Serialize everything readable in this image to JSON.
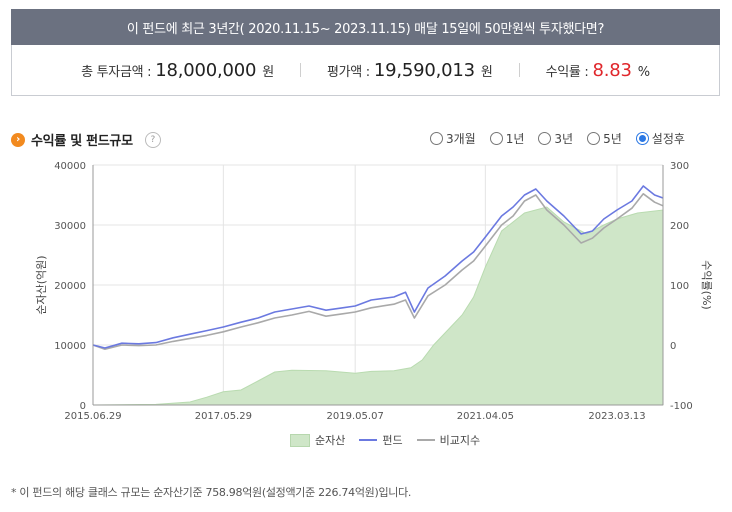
{
  "header": {
    "title": "이 펀드에 최근 3년간( 2020.11.15~ 2023.11.15) 매달 15일에 50만원씩 투자했다면?"
  },
  "summary": {
    "total_label": "총 투자금액 :",
    "total_value": "18,000,000",
    "total_unit": "원",
    "eval_label": "평가액 :",
    "eval_value": "19,590,013",
    "eval_unit": "원",
    "return_label": "수익률 :",
    "return_value": "8.83",
    "return_unit": "%"
  },
  "section": {
    "title": "수익률 및 펀드규모",
    "bullet_icon": "chevron-right-icon",
    "help_icon": "question-icon",
    "help_glyph": "?"
  },
  "periods": [
    {
      "label": "3개월",
      "selected": false
    },
    {
      "label": "1년",
      "selected": false
    },
    {
      "label": "3년",
      "selected": false
    },
    {
      "label": "5년",
      "selected": false
    },
    {
      "label": "설정후",
      "selected": true
    }
  ],
  "chart_data": {
    "type": "area",
    "x_start": "2015.06.29",
    "x_end": "2023.11.15",
    "x_ticks": [
      "2015.06.29",
      "2017.05.29",
      "2019.05.07",
      "2021.04.05",
      "2023.03.13"
    ],
    "y_left": {
      "label": "순자산(억원)",
      "ticks": [
        0,
        10000,
        20000,
        30000,
        40000
      ],
      "range": [
        0,
        40000
      ]
    },
    "y_right": {
      "label": "수익률(%)",
      "ticks": [
        -100,
        0,
        100,
        200,
        300
      ],
      "range": [
        -100,
        300
      ]
    },
    "grid": true,
    "legend_position": "bottom",
    "colors": {
      "net_assets": "#cfe6c8",
      "fund": "#6b79e0",
      "index": "#a9a9a9"
    },
    "series": [
      {
        "name": "순자산",
        "axis": "left",
        "style": "area",
        "points": [
          [
            "2015.06.29",
            0
          ],
          [
            "2016.06.01",
            100
          ],
          [
            "2016.12.01",
            500
          ],
          [
            "2017.03.01",
            1300
          ],
          [
            "2017.05.29",
            2200
          ],
          [
            "2017.09.01",
            2500
          ],
          [
            "2017.12.01",
            4000
          ],
          [
            "2018.03.01",
            5500
          ],
          [
            "2018.06.01",
            5800
          ],
          [
            "2018.12.01",
            5700
          ],
          [
            "2019.05.07",
            5300
          ],
          [
            "2019.08.01",
            5600
          ],
          [
            "2019.12.01",
            5700
          ],
          [
            "2020.03.01",
            6200
          ],
          [
            "2020.05.01",
            7500
          ],
          [
            "2020.07.01",
            10000
          ],
          [
            "2020.10.01",
            13000
          ],
          [
            "2020.12.01",
            15000
          ],
          [
            "2021.02.01",
            18000
          ],
          [
            "2021.04.05",
            23000
          ],
          [
            "2021.07.01",
            29000
          ],
          [
            "2021.11.01",
            32000
          ],
          [
            "2022.03.01",
            33000
          ],
          [
            "2022.06.01",
            30500
          ],
          [
            "2022.10.01",
            28500
          ],
          [
            "2023.01.01",
            30000
          ],
          [
            "2023.03.13",
            31000
          ],
          [
            "2023.07.01",
            32000
          ],
          [
            "2023.11.15",
            32500
          ]
        ]
      },
      {
        "name": "펀드",
        "axis": "right",
        "style": "line",
        "points": [
          [
            "2015.06.29",
            0
          ],
          [
            "2015.09.01",
            -5
          ],
          [
            "2015.12.01",
            3
          ],
          [
            "2016.03.01",
            2
          ],
          [
            "2016.06.01",
            4
          ],
          [
            "2016.09.01",
            12
          ],
          [
            "2016.12.01",
            18
          ],
          [
            "2017.03.01",
            24
          ],
          [
            "2017.05.29",
            30
          ],
          [
            "2017.09.01",
            38
          ],
          [
            "2017.12.01",
            45
          ],
          [
            "2018.03.01",
            55
          ],
          [
            "2018.06.01",
            60
          ],
          [
            "2018.09.01",
            65
          ],
          [
            "2018.12.01",
            58
          ],
          [
            "2019.03.01",
            62
          ],
          [
            "2019.05.07",
            65
          ],
          [
            "2019.08.01",
            75
          ],
          [
            "2019.12.01",
            80
          ],
          [
            "2020.02.01",
            88
          ],
          [
            "2020.03.20",
            55
          ],
          [
            "2020.06.01",
            95
          ],
          [
            "2020.09.01",
            115
          ],
          [
            "2020.12.01",
            140
          ],
          [
            "2021.02.01",
            155
          ],
          [
            "2021.04.05",
            180
          ],
          [
            "2021.07.01",
            215
          ],
          [
            "2021.09.01",
            230
          ],
          [
            "2021.11.01",
            250
          ],
          [
            "2022.01.01",
            260
          ],
          [
            "2022.03.01",
            240
          ],
          [
            "2022.06.01",
            215
          ],
          [
            "2022.09.01",
            185
          ],
          [
            "2022.11.01",
            190
          ],
          [
            "2023.01.01",
            210
          ],
          [
            "2023.03.13",
            225
          ],
          [
            "2023.06.01",
            240
          ],
          [
            "2023.08.01",
            265
          ],
          [
            "2023.10.01",
            250
          ],
          [
            "2023.11.15",
            245
          ]
        ]
      },
      {
        "name": "비교지수",
        "axis": "right",
        "style": "line",
        "points": [
          [
            "2015.06.29",
            0
          ],
          [
            "2015.09.01",
            -7
          ],
          [
            "2015.12.01",
            0
          ],
          [
            "2016.03.01",
            -1
          ],
          [
            "2016.06.01",
            0
          ],
          [
            "2016.09.01",
            6
          ],
          [
            "2016.12.01",
            11
          ],
          [
            "2017.03.01",
            16
          ],
          [
            "2017.05.29",
            22
          ],
          [
            "2017.09.01",
            30
          ],
          [
            "2017.12.01",
            37
          ],
          [
            "2018.03.01",
            45
          ],
          [
            "2018.06.01",
            50
          ],
          [
            "2018.09.01",
            56
          ],
          [
            "2018.12.01",
            48
          ],
          [
            "2019.03.01",
            52
          ],
          [
            "2019.05.07",
            55
          ],
          [
            "2019.08.01",
            62
          ],
          [
            "2019.12.01",
            68
          ],
          [
            "2020.02.01",
            75
          ],
          [
            "2020.03.20",
            45
          ],
          [
            "2020.06.01",
            82
          ],
          [
            "2020.09.01",
            100
          ],
          [
            "2020.12.01",
            125
          ],
          [
            "2021.02.01",
            140
          ],
          [
            "2021.04.05",
            165
          ],
          [
            "2021.07.01",
            200
          ],
          [
            "2021.09.01",
            215
          ],
          [
            "2021.11.01",
            240
          ],
          [
            "2022.01.01",
            250
          ],
          [
            "2022.03.01",
            225
          ],
          [
            "2022.06.01",
            200
          ],
          [
            "2022.09.01",
            170
          ],
          [
            "2022.11.01",
            178
          ],
          [
            "2023.01.01",
            195
          ],
          [
            "2023.03.13",
            210
          ],
          [
            "2023.06.01",
            228
          ],
          [
            "2023.08.01",
            252
          ],
          [
            "2023.10.01",
            238
          ],
          [
            "2023.11.15",
            232
          ]
        ]
      }
    ]
  },
  "footnote": "* 이 펀드의 해당 클래스 규모는 순자산기준 758.98억원(설정액기준 226.74억원)입니다."
}
